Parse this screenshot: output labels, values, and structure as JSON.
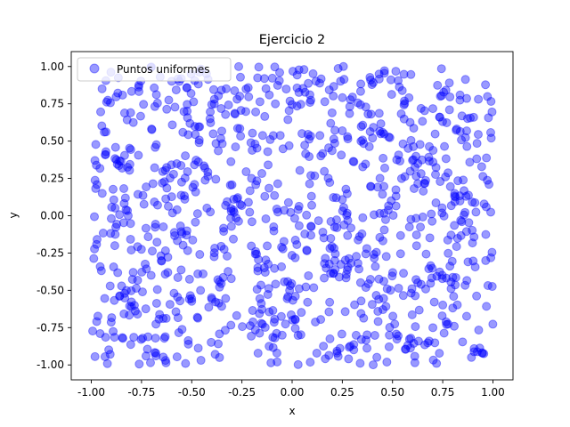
{
  "chart_data": {
    "type": "scatter",
    "title": "Ejercicio 2",
    "xlabel": "x",
    "ylabel": "y",
    "xlim": [
      -1.1,
      1.1
    ],
    "ylim": [
      -1.1,
      1.1
    ],
    "xticks": [
      "-1.00",
      "-0.75",
      "-0.50",
      "-0.25",
      "0.00",
      "0.25",
      "0.50",
      "0.75",
      "1.00"
    ],
    "yticks": [
      "-1.00",
      "-0.75",
      "-0.50",
      "-0.25",
      "0.00",
      "0.25",
      "0.50",
      "0.75",
      "1.00"
    ],
    "grid": false,
    "legend_position": "top-left",
    "series": [
      {
        "name": "Puntos uniformes",
        "color": "#0000ff",
        "alpha": 0.4,
        "marker": "circle",
        "count": 1000,
        "distribution": "uniform",
        "x_range": [
          -1,
          1
        ],
        "y_range": [
          -1,
          1
        ]
      }
    ]
  }
}
